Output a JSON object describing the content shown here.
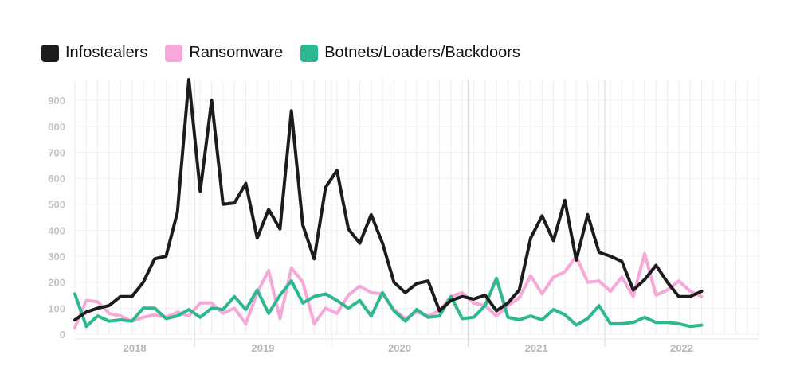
{
  "legend": {
    "infostealers": {
      "label": "Infostealers",
      "color": "#1c1c1c"
    },
    "ransomware": {
      "label": "Ransomware",
      "color": "#f7a8d8"
    },
    "botnets": {
      "label": "Botnets/Loaders/Backdoors",
      "color": "#2db892"
    }
  },
  "chart_data": {
    "type": "line",
    "title": "",
    "xlabel": "",
    "ylabel": "",
    "ylim": [
      0,
      980
    ],
    "yticks": [
      0,
      100,
      200,
      300,
      400,
      500,
      600,
      700,
      800,
      900
    ],
    "grid": true,
    "x": [
      "2017-08",
      "2017-09",
      "2017-10",
      "2017-11",
      "2017-12",
      "2018-01",
      "2018-02",
      "2018-03",
      "2018-04",
      "2018-05",
      "2018-06",
      "2018-07",
      "2018-08",
      "2018-09",
      "2018-10",
      "2018-11",
      "2018-12",
      "2019-01",
      "2019-02",
      "2019-03",
      "2019-04",
      "2019-05",
      "2019-06",
      "2019-07",
      "2019-08",
      "2019-09",
      "2019-10",
      "2019-11",
      "2019-12",
      "2020-01",
      "2020-02",
      "2020-03",
      "2020-04",
      "2020-05",
      "2020-06",
      "2020-07",
      "2020-08",
      "2020-09",
      "2020-10",
      "2020-11",
      "2020-12",
      "2021-01",
      "2021-02",
      "2021-03",
      "2021-04",
      "2021-05",
      "2021-06",
      "2021-07",
      "2021-08",
      "2021-09",
      "2021-10",
      "2021-11",
      "2021-12",
      "2022-01",
      "2022-02",
      "2022-03",
      "2022-04",
      "2022-05",
      "2022-06",
      "2022-07",
      "2022-08"
    ],
    "year_labels": [
      {
        "label": "2018",
        "start": 0,
        "end": 10.5
      },
      {
        "label": "2019",
        "start": 10.5,
        "end": 22.5
      },
      {
        "label": "2020",
        "start": 22.5,
        "end": 34.5
      },
      {
        "label": "2021",
        "start": 34.5,
        "end": 46.5
      },
      {
        "label": "2022",
        "start": 46.5,
        "end": 60
      }
    ],
    "year_boundaries": [
      10.5,
      22.5,
      34.5,
      46.5
    ],
    "series": [
      {
        "name": "Infostealers",
        "key": "infostealers",
        "color": "#1c1c1c",
        "values": [
          55,
          85,
          100,
          110,
          145,
          145,
          200,
          290,
          300,
          470,
          980,
          550,
          900,
          500,
          505,
          580,
          370,
          480,
          405,
          860,
          420,
          290,
          565,
          630,
          405,
          350,
          460,
          350,
          200,
          160,
          195,
          205,
          90,
          130,
          145,
          135,
          150,
          90,
          120,
          170,
          370,
          455,
          360,
          515,
          285,
          460,
          315,
          300,
          280,
          170,
          210,
          265,
          200,
          145,
          145,
          165,
          null,
          null,
          null,
          null,
          null
        ]
      },
      {
        "name": "Ransomware",
        "key": "ransomware",
        "color": "#f7a8d8",
        "values": [
          25,
          130,
          125,
          80,
          70,
          50,
          65,
          75,
          65,
          85,
          70,
          120,
          120,
          80,
          100,
          40,
          160,
          245,
          60,
          255,
          200,
          40,
          100,
          80,
          150,
          185,
          160,
          155,
          95,
          60,
          85,
          70,
          90,
          145,
          160,
          120,
          110,
          70,
          110,
          140,
          225,
          155,
          220,
          240,
          300,
          200,
          205,
          165,
          220,
          145,
          310,
          150,
          170,
          205,
          165,
          145,
          null,
          null,
          null,
          null,
          null
        ]
      },
      {
        "name": "Botnets/Loaders/Backdoors",
        "key": "botnets",
        "color": "#2db892",
        "values": [
          155,
          30,
          70,
          50,
          55,
          50,
          100,
          100,
          60,
          70,
          95,
          65,
          100,
          95,
          145,
          95,
          170,
          80,
          150,
          205,
          120,
          145,
          155,
          130,
          100,
          130,
          70,
          160,
          90,
          50,
          95,
          65,
          70,
          145,
          60,
          65,
          110,
          215,
          65,
          55,
          70,
          55,
          95,
          75,
          35,
          60,
          110,
          40,
          40,
          45,
          65,
          45,
          45,
          40,
          30,
          35,
          null,
          null,
          null,
          null,
          null
        ]
      }
    ]
  }
}
